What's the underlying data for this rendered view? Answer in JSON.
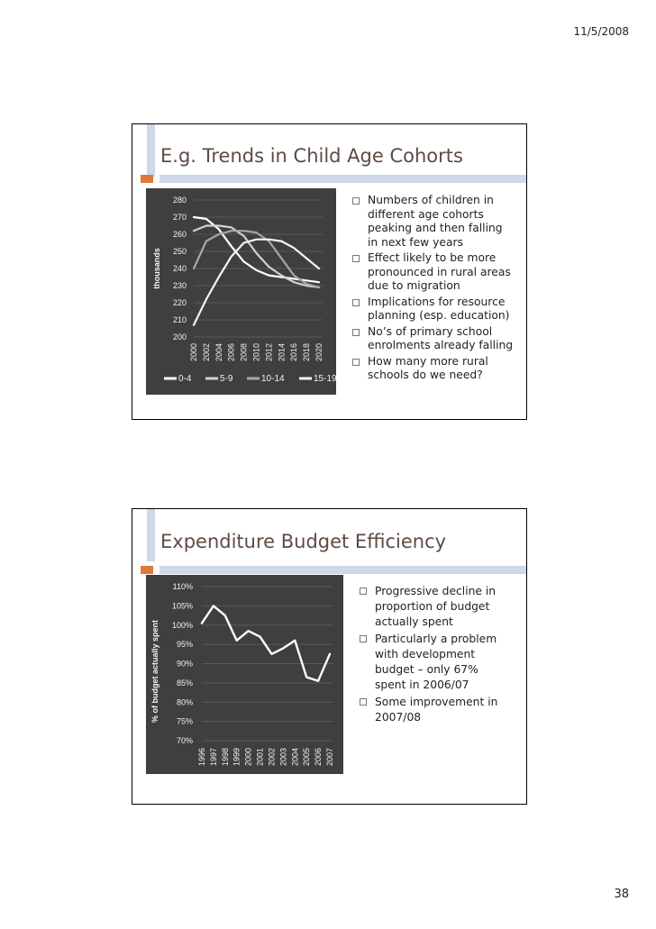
{
  "header": {
    "date": "11/5/2008"
  },
  "footer": {
    "page_number": "38"
  },
  "slide1": {
    "title": "E.g. Trends in Child Age Cohorts",
    "bullets": [
      "Numbers of children in different age cohorts peaking and then falling in next few years",
      "Effect likely to be more pronounced in rural areas due to migration",
      "Implications for resource planning (esp. education)",
      "No’s of primary school enrolments already falling",
      "How many more rural schools do we need?"
    ],
    "chart_data": {
      "type": "line",
      "ylabel": "thousands",
      "xlabel": "",
      "ylim": [
        200,
        280
      ],
      "yticks": [
        "280",
        "270",
        "260",
        "250",
        "240",
        "230",
        "220",
        "210",
        "200"
      ],
      "x": [
        "2000",
        "2002",
        "2004",
        "2006",
        "2008",
        "2010",
        "2012",
        "2014",
        "2016",
        "2018",
        "2020"
      ],
      "grid": true,
      "legend": "bottom",
      "series": [
        {
          "name": "0-4",
          "color": "#ffffff",
          "values": [
            270,
            269,
            263,
            253,
            244,
            239,
            236,
            235,
            234,
            233,
            232
          ]
        },
        {
          "name": "5-9",
          "color": "#d2d2d2",
          "values": [
            262,
            265,
            265,
            264,
            259,
            249,
            241,
            236,
            232,
            230,
            229
          ]
        },
        {
          "name": "10-14",
          "color": "#a8a8a8",
          "values": [
            240,
            256,
            260,
            262,
            262,
            261,
            256,
            246,
            236,
            231,
            229
          ]
        },
        {
          "name": "15-19",
          "color": "#f5f5f5",
          "values": [
            207,
            222,
            235,
            247,
            255,
            257,
            257,
            256,
            252,
            246,
            240
          ]
        }
      ]
    }
  },
  "slide2": {
    "title": "Expenditure Budget Efficiency",
    "bullets": [
      "Progressive decline in proportion of budget actually spent",
      "Particularly a problem with development budget – only 67% spent in 2006/07",
      "Some improvement in 2007/08"
    ],
    "chart_data": {
      "type": "line",
      "ylabel": "% of budget actually spent",
      "xlabel": "",
      "ylim": [
        70,
        110
      ],
      "yticks": [
        "110%",
        "105%",
        "100%",
        "95%",
        "90%",
        "85%",
        "80%",
        "75%",
        "70%"
      ],
      "x": [
        "1996",
        "1997",
        "1998",
        "1999",
        "2000",
        "2001",
        "2002",
        "2003",
        "2004",
        "2005",
        "2006",
        "2007"
      ],
      "grid": true,
      "series": [
        {
          "color": "#ffffff",
          "values": [
            100.5,
            105,
            102.5,
            96,
            98.5,
            97,
            92.5,
            94,
            96,
            86.5,
            85.5,
            92.5
          ]
        }
      ]
    }
  }
}
